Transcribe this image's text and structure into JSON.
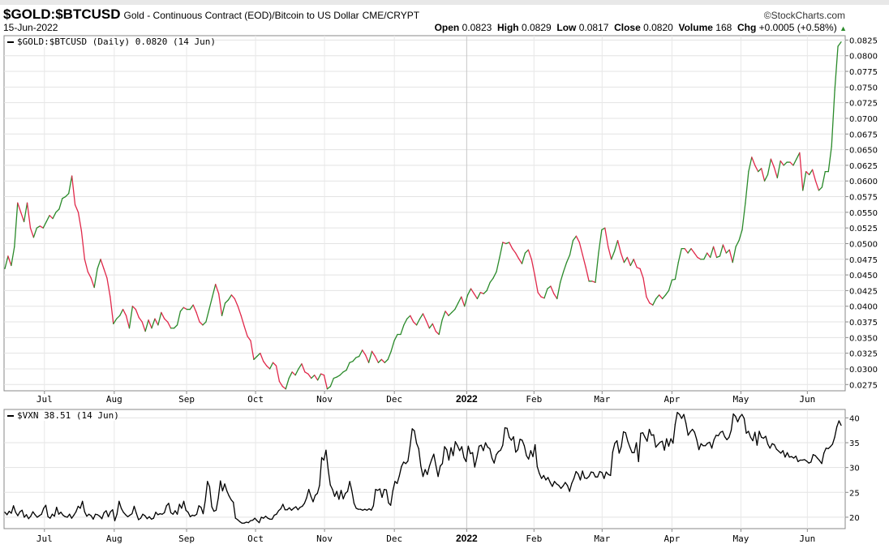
{
  "header": {
    "symbol": "$GOLD:$BTCUSD",
    "description": "Gold - Continuous Contract (EOD)/Bitcoin to US Dollar",
    "exchange": "CME/CRYPT",
    "brand": "©StockCharts.com",
    "date": "15-Jun-2022",
    "open_label": "Open",
    "open": "0.0823",
    "high_label": "High",
    "high": "0.0829",
    "low_label": "Low",
    "low": "0.0817",
    "close_label": "Close",
    "close": "0.0820",
    "volume_label": "Volume",
    "volume": "168",
    "chg_label": "Chg",
    "chg": "+0.0005 (+0.58%)",
    "chg_arrow": "▲"
  },
  "chart_data": [
    {
      "type": "line",
      "legend": "$GOLD:$BTCUSD (Daily) 0.0820 (14 Jun)",
      "up_color": "#2a8a2a",
      "down_color": "#e0284a",
      "grid": true,
      "ylim": [
        0.0265,
        0.0832
      ],
      "ytick_labels": [
        "0.0825",
        "0.0800",
        "0.0775",
        "0.0750",
        "0.0725",
        "0.0700",
        "0.0675",
        "0.0650",
        "0.0625",
        "0.0600",
        "0.0575",
        "0.0550",
        "0.0525",
        "0.0500",
        "0.0475",
        "0.0450",
        "0.0425",
        "0.0400",
        "0.0375",
        "0.0350",
        "0.0325",
        "0.0300",
        "0.0275"
      ],
      "x_labels": [
        "Jul",
        "Aug",
        "Sep",
        "Oct",
        "Nov",
        "Dec",
        "2022",
        "Feb",
        "Mar",
        "Apr",
        "May",
        "Jun"
      ],
      "values": [
        0.046,
        0.048,
        0.0465,
        0.0495,
        0.0565,
        0.055,
        0.0535,
        0.0565,
        0.0525,
        0.051,
        0.0525,
        0.0528,
        0.0525,
        0.0535,
        0.0545,
        0.054,
        0.055,
        0.0555,
        0.0572,
        0.0575,
        0.058,
        0.0608,
        0.0562,
        0.055,
        0.052,
        0.0475,
        0.0455,
        0.0445,
        0.043,
        0.046,
        0.0475,
        0.046,
        0.0445,
        0.0415,
        0.0372,
        0.038,
        0.0385,
        0.0395,
        0.0385,
        0.0365,
        0.04,
        0.0395,
        0.0382,
        0.0375,
        0.036,
        0.0378,
        0.0365,
        0.038,
        0.037,
        0.039,
        0.038,
        0.0375,
        0.0365,
        0.0365,
        0.037,
        0.0392,
        0.0398,
        0.0395,
        0.0395,
        0.0402,
        0.039,
        0.0375,
        0.037,
        0.0375,
        0.0395,
        0.0415,
        0.0435,
        0.042,
        0.0385,
        0.0405,
        0.041,
        0.0418,
        0.0412,
        0.04,
        0.0385,
        0.0368,
        0.0352,
        0.0345,
        0.0315,
        0.032,
        0.0325,
        0.0312,
        0.0305,
        0.03,
        0.031,
        0.0305,
        0.028,
        0.0272,
        0.0268,
        0.0285,
        0.0295,
        0.029,
        0.03,
        0.0308,
        0.0295,
        0.0292,
        0.0285,
        0.029,
        0.0282,
        0.0292,
        0.029,
        0.0268,
        0.0272,
        0.0285,
        0.0287,
        0.029,
        0.0295,
        0.0298,
        0.031,
        0.0312,
        0.0318,
        0.032,
        0.033,
        0.0322,
        0.031,
        0.0328,
        0.032,
        0.031,
        0.0315,
        0.031,
        0.0315,
        0.0328,
        0.0345,
        0.0355,
        0.0355,
        0.037,
        0.038,
        0.0385,
        0.0375,
        0.037,
        0.038,
        0.0388,
        0.0377,
        0.0365,
        0.0372,
        0.036,
        0.0355,
        0.0378,
        0.0392,
        0.0385,
        0.039,
        0.0395,
        0.0405,
        0.0415,
        0.04,
        0.0418,
        0.0428,
        0.042,
        0.0412,
        0.0422,
        0.042,
        0.0425,
        0.0438,
        0.0445,
        0.0455,
        0.0478,
        0.0502,
        0.05,
        0.0502,
        0.0492,
        0.0485,
        0.0476,
        0.0468,
        0.0485,
        0.049,
        0.0475,
        0.045,
        0.0422,
        0.0415,
        0.0413,
        0.0428,
        0.0432,
        0.042,
        0.0412,
        0.0438,
        0.0455,
        0.047,
        0.0482,
        0.0505,
        0.0512,
        0.0502,
        0.0482,
        0.0462,
        0.044,
        0.044,
        0.0438,
        0.0485,
        0.0522,
        0.0525,
        0.0495,
        0.0475,
        0.0488,
        0.0505,
        0.0485,
        0.047,
        0.0478,
        0.0465,
        0.0475,
        0.0462,
        0.046,
        0.0445,
        0.0415,
        0.0405,
        0.0402,
        0.0412,
        0.0418,
        0.0412,
        0.0418,
        0.0425,
        0.0442,
        0.0443,
        0.047,
        0.0492,
        0.0492,
        0.0485,
        0.0492,
        0.0485,
        0.0478,
        0.0475,
        0.0475,
        0.0485,
        0.0478,
        0.0495,
        0.0478,
        0.048,
        0.0498,
        0.0485,
        0.049,
        0.047,
        0.0495,
        0.0505,
        0.0522,
        0.0565,
        0.0615,
        0.0638,
        0.0625,
        0.0615,
        0.062,
        0.06,
        0.061,
        0.0635,
        0.0622,
        0.0605,
        0.0632,
        0.0625,
        0.063,
        0.063,
        0.0625,
        0.0635,
        0.0645,
        0.0585,
        0.0615,
        0.061,
        0.0618,
        0.06,
        0.0585,
        0.059,
        0.0615,
        0.0615,
        0.0655,
        0.0745,
        0.0815,
        0.0822
      ]
    },
    {
      "type": "line",
      "legend": "$VXN 38.51 (14 Jun)",
      "color": "#000000",
      "grid": true,
      "ylim": [
        17.7,
        41.7
      ],
      "ytick_labels": [
        "40",
        "35",
        "30",
        "25",
        "20"
      ],
      "x_labels": [
        "Jul",
        "Aug",
        "Sep",
        "Oct",
        "Nov",
        "Dec",
        "2022",
        "Feb",
        "Mar",
        "Apr",
        "May",
        "Jun"
      ],
      "values": [
        21,
        20.5,
        21.2,
        20.8,
        22.3,
        21,
        20.3,
        21.1,
        21.4,
        20,
        20.5,
        19.7,
        20.2,
        21.1,
        20.5,
        20,
        20.3,
        20.6,
        21.8,
        22.4,
        20.1,
        19.8,
        20.6,
        20.2,
        22,
        20.6,
        21,
        20.4,
        20.1,
        20,
        20.6,
        19.8,
        20.4,
        21.1,
        22.2,
        21.8,
        23.2,
        21.1,
        20.2,
        20.6,
        20.3,
        19.6,
        20.6,
        20.5,
        20.2,
        19.7,
        20.9,
        21.3,
        20.1,
        21.1,
        21.5,
        19.3,
        20.6,
        23.2,
        21.8,
        21,
        20.5,
        20.1,
        20.4,
        20.7,
        22.2,
        20.8,
        19.5,
        19.8,
        20.6,
        20.3,
        19.7,
        20.1,
        19.6,
        19.8,
        21,
        20.5,
        20.7,
        20.6,
        20.9,
        22.3,
        22.8,
        20.9,
        20.6,
        21.3,
        20.6,
        22.6,
        21.8,
        23.2,
        21.4,
        21,
        20.1,
        20.4,
        20.3,
        20.6,
        22.3,
        22,
        20.7,
        23.4,
        27.2,
        26.1,
        22.1,
        21.2,
        21.4,
        23.8,
        27.3,
        25.3,
        26.7,
        25.3,
        24.3,
        23.5,
        23,
        19.8,
        19.5,
        19.1,
        18.8,
        18.8,
        19,
        18.9,
        19.3,
        19.4,
        19.8,
        19.3,
        18.9,
        20,
        19.8,
        20.2,
        19.8,
        19.6,
        19.6,
        20.4,
        20.6,
        21.3,
        21.7,
        22.6,
        21.5,
        21.5,
        21.9,
        21.4,
        21.8,
        22.1,
        21.5,
        22,
        22.2,
        22.8,
        23.9,
        25.6,
        24.2,
        23.1,
        24.4,
        24.8,
        26.4,
        32,
        31.5,
        33.5,
        29.6,
        26.5,
        25.6,
        24.2,
        25.2,
        23.6,
        25.4,
        23.7,
        24.8,
        25.2,
        27.2,
        25.3,
        22.8,
        21.8,
        21.6,
        21.6,
        21.4,
        21.6,
        21.4,
        21.7,
        21.4,
        22.3,
        25.6,
        25.4,
        25.7,
        24,
        25.6,
        25.5,
        22.9,
        22.4,
        25.3,
        27.2,
        26.8,
        28.3,
        30.2,
        31.1,
        30.8,
        31.3,
        34.3,
        37.8,
        37.4,
        34.9,
        33.8,
        30.3,
        28.2,
        29.6,
        28.6,
        30.3,
        31.6,
        32.7,
        30.4,
        28.2,
        30.3,
        30.8,
        34.2,
        33.6,
        31.5,
        34,
        32.4,
        35.2,
        34.4,
        33.4,
        34.2,
        32,
        31.2,
        34.3,
        32.8,
        33,
        30.1,
        32,
        34.3,
        34.5,
        33.4,
        35,
        34.1,
        33.8,
        31.9,
        30.9,
        32.6,
        33.2,
        33.5,
        34.5,
        38,
        37.9,
        36.1,
        35.5,
        36.2,
        33.1,
        33.6,
        35.7,
        35.5,
        34.4,
        32.4,
        31.7,
        33.4,
        32.2,
        34.6,
        30.2,
        28.8,
        27.8,
        28.4,
        27.5,
        28,
        27,
        26.2,
        27.2,
        26.7,
        26.4,
        25.8,
        26.3,
        27,
        26.4,
        25.2,
        26.8,
        27.8,
        29.2,
        28.7,
        27.5,
        29.3,
        27.9,
        27.8,
        28.2,
        29.1,
        29,
        28.1,
        28.1,
        29.2,
        29,
        27.8,
        29.1,
        28.6,
        28.4,
        33.1,
        34.9,
        35.4,
        32.9,
        34.2,
        37.2,
        37,
        35.3,
        34.1,
        33,
        33,
        35,
        31.2,
        36.9,
        37,
        36.1,
        35.3,
        37.7,
        36.5,
        36.6,
        34.1,
        34.6,
        35.1,
        35.3,
        33.5,
        35.8,
        34.3,
        35.8,
        34.9,
        38.7,
        41.1,
        40.7,
        39.9,
        40.7,
        38.9,
        36.5,
        37.2,
        37.7,
        37.1,
        35.6,
        33.6,
        34.8,
        34.4,
        34.4,
        34.9,
        35.1,
        33.9,
        35.6,
        36.5,
        36.4,
        37.1,
        37.3,
        36.2,
        35.6,
        36.1,
        37.5,
        40.8,
        40.3,
        39.2,
        40.2,
        40.7,
        39.9,
        36.9,
        37.3,
        36.1,
        35.4,
        37.1,
        34.5,
        37.3,
        36.1,
        35.9,
        36.3,
        34.7,
        33.9,
        34.8,
        34.6,
        33.7,
        33.3,
        32.9,
        33.4,
        32.1,
        33,
        32.1,
        32.2,
        31.9,
        32.3,
        31.2,
        31.5,
        31.5,
        31.6,
        31.3,
        30.9,
        31.1,
        32.6,
        32.4,
        31.9,
        31.4,
        30.8,
        32.9,
        33.9,
        33.8,
        34.2,
        34.7,
        36.1,
        38.2,
        39.4,
        38.5
      ]
    }
  ]
}
